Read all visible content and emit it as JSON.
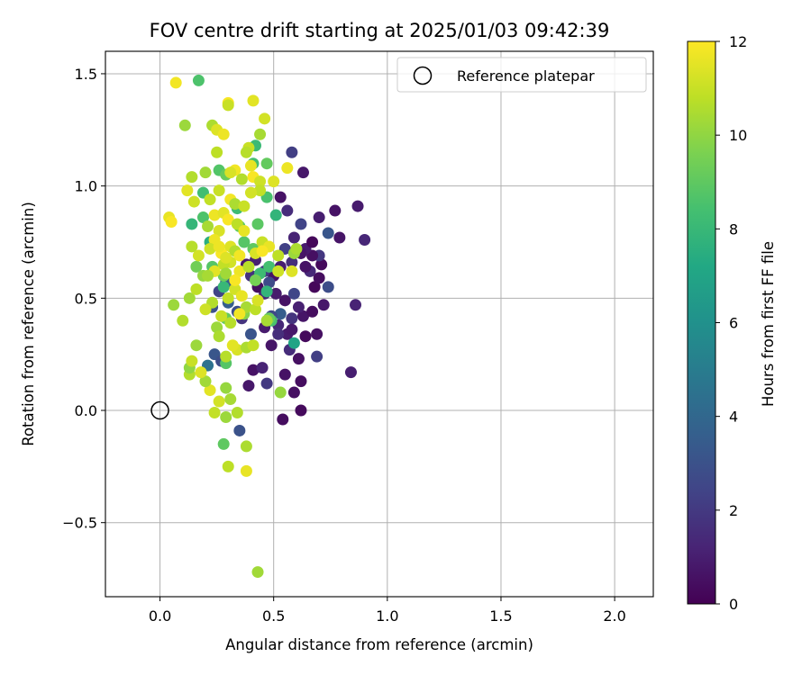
{
  "chart_data": {
    "type": "scatter",
    "title": "FOV centre drift starting at 2025/01/03 09:42:39",
    "xlabel": "Angular distance from reference (arcmin)",
    "ylabel": "Rotation from reference (arcmin)",
    "xlim": [
      -0.24,
      2.17
    ],
    "ylim": [
      -0.83,
      1.6
    ],
    "xticks": [
      0.0,
      0.5,
      1.0,
      1.5,
      2.0
    ],
    "xtick_labels": [
      "0.0",
      "0.5",
      "1.0",
      "1.5",
      "2.0"
    ],
    "yticks": [
      -0.5,
      0.0,
      0.5,
      1.0,
      1.5
    ],
    "ytick_labels": [
      "−0.5",
      "0.0",
      "0.5",
      "1.0",
      "1.5"
    ],
    "grid": true,
    "legend": {
      "placement": "top-right",
      "entries": [
        "Reference platepar"
      ]
    },
    "reference_point": {
      "label": "Reference platepar",
      "x": 0.0,
      "y": 0.0
    },
    "colorbar": {
      "label": "Hours from first FF file",
      "min": 0,
      "max": 12,
      "ticks": [
        0,
        2,
        4,
        6,
        8,
        10,
        12
      ],
      "tick_labels": [
        "0",
        "2",
        "4",
        "6",
        "8",
        "10",
        "12"
      ],
      "colormap": "viridis"
    },
    "points": [
      {
        "x": 0.54,
        "y": -0.04,
        "h": 0.4
      },
      {
        "x": 0.62,
        "y": 0.0,
        "h": 0.3
      },
      {
        "x": 0.59,
        "y": 0.08,
        "h": 0.5
      },
      {
        "x": 0.55,
        "y": 0.16,
        "h": 0.6
      },
      {
        "x": 0.62,
        "y": 0.13,
        "h": 0.4
      },
      {
        "x": 0.84,
        "y": 0.17,
        "h": 1.0
      },
      {
        "x": 0.69,
        "y": 0.24,
        "h": 2.2
      },
      {
        "x": 0.61,
        "y": 0.23,
        "h": 0.5
      },
      {
        "x": 0.57,
        "y": 0.27,
        "h": 1.5
      },
      {
        "x": 0.49,
        "y": 0.29,
        "h": 0.7
      },
      {
        "x": 0.41,
        "y": 0.18,
        "h": 0.6
      },
      {
        "x": 0.45,
        "y": 0.19,
        "h": 1.2
      },
      {
        "x": 0.47,
        "y": 0.12,
        "h": 2.0
      },
      {
        "x": 0.39,
        "y": 0.11,
        "h": 0.8
      },
      {
        "x": 0.35,
        "y": -0.09,
        "h": 3.0
      },
      {
        "x": 0.64,
        "y": 0.33,
        "h": 0.3
      },
      {
        "x": 0.69,
        "y": 0.34,
        "h": 0.5
      },
      {
        "x": 0.56,
        "y": 0.34,
        "h": 0.9
      },
      {
        "x": 0.52,
        "y": 0.38,
        "h": 1.3
      },
      {
        "x": 0.58,
        "y": 0.41,
        "h": 1.8
      },
      {
        "x": 0.63,
        "y": 0.42,
        "h": 0.7
      },
      {
        "x": 0.67,
        "y": 0.44,
        "h": 0.4
      },
      {
        "x": 0.61,
        "y": 0.46,
        "h": 1.1
      },
      {
        "x": 0.55,
        "y": 0.49,
        "h": 0.6
      },
      {
        "x": 0.59,
        "y": 0.52,
        "h": 2.5
      },
      {
        "x": 0.68,
        "y": 0.55,
        "h": 0.2
      },
      {
        "x": 0.74,
        "y": 0.55,
        "h": 2.8
      },
      {
        "x": 0.72,
        "y": 0.47,
        "h": 0.8
      },
      {
        "x": 0.7,
        "y": 0.59,
        "h": 0.4
      },
      {
        "x": 0.66,
        "y": 0.62,
        "h": 1.4
      },
      {
        "x": 0.64,
        "y": 0.64,
        "h": 0.6
      },
      {
        "x": 0.71,
        "y": 0.65,
        "h": 0.3
      },
      {
        "x": 0.7,
        "y": 0.69,
        "h": 1.9
      },
      {
        "x": 0.67,
        "y": 0.69,
        "h": 0.5
      },
      {
        "x": 0.64,
        "y": 0.72,
        "h": 0.9
      },
      {
        "x": 0.67,
        "y": 0.75,
        "h": 0.2
      },
      {
        "x": 0.62,
        "y": 0.7,
        "h": 0.7
      },
      {
        "x": 0.58,
        "y": 0.66,
        "h": 1.6
      },
      {
        "x": 0.55,
        "y": 0.72,
        "h": 2.3
      },
      {
        "x": 0.53,
        "y": 0.64,
        "h": 1.0
      },
      {
        "x": 0.5,
        "y": 0.6,
        "h": 0.6
      },
      {
        "x": 0.48,
        "y": 0.57,
        "h": 2.7
      },
      {
        "x": 0.51,
        "y": 0.52,
        "h": 0.9
      },
      {
        "x": 0.46,
        "y": 0.52,
        "h": 1.4
      },
      {
        "x": 0.43,
        "y": 0.55,
        "h": 0.4
      },
      {
        "x": 0.4,
        "y": 0.6,
        "h": 1.7
      },
      {
        "x": 0.38,
        "y": 0.65,
        "h": 0.8
      },
      {
        "x": 0.42,
        "y": 0.67,
        "h": 1.1
      },
      {
        "x": 0.46,
        "y": 0.62,
        "h": 2.1
      },
      {
        "x": 0.59,
        "y": 0.77,
        "h": 1.2
      },
      {
        "x": 0.62,
        "y": 0.83,
        "h": 2.4
      },
      {
        "x": 0.7,
        "y": 0.86,
        "h": 1.0
      },
      {
        "x": 0.77,
        "y": 0.89,
        "h": 0.6
      },
      {
        "x": 0.87,
        "y": 0.91,
        "h": 0.9
      },
      {
        "x": 0.9,
        "y": 0.76,
        "h": 1.3
      },
      {
        "x": 0.79,
        "y": 0.77,
        "h": 0.7
      },
      {
        "x": 0.74,
        "y": 0.79,
        "h": 3.2
      },
      {
        "x": 0.56,
        "y": 0.89,
        "h": 1.5
      },
      {
        "x": 0.53,
        "y": 0.95,
        "h": 0.6
      },
      {
        "x": 0.58,
        "y": 1.15,
        "h": 2.2
      },
      {
        "x": 0.63,
        "y": 1.06,
        "h": 0.8
      },
      {
        "x": 0.86,
        "y": 0.47,
        "h": 1.2
      },
      {
        "x": 0.53,
        "y": 0.43,
        "h": 3.5
      },
      {
        "x": 0.49,
        "y": 0.42,
        "h": 2.6
      },
      {
        "x": 0.46,
        "y": 0.37,
        "h": 0.9
      },
      {
        "x": 0.4,
        "y": 0.34,
        "h": 3.1
      },
      {
        "x": 0.36,
        "y": 0.41,
        "h": 1.8
      },
      {
        "x": 0.34,
        "y": 0.44,
        "h": 2.9
      },
      {
        "x": 0.3,
        "y": 0.48,
        "h": 3.6
      },
      {
        "x": 0.26,
        "y": 0.53,
        "h": 2.4
      },
      {
        "x": 0.23,
        "y": 0.46,
        "h": 3.0
      },
      {
        "x": 0.29,
        "y": 0.57,
        "h": 3.4
      },
      {
        "x": 0.24,
        "y": 0.25,
        "h": 3.2
      },
      {
        "x": 0.27,
        "y": 0.22,
        "h": 2.8
      },
      {
        "x": 0.21,
        "y": 0.2,
        "h": 4.5
      },
      {
        "x": 0.58,
        "y": 0.36,
        "h": 0.8
      },
      {
        "x": 0.52,
        "y": 0.34,
        "h": 1.6
      },
      {
        "x": 0.59,
        "y": 0.3,
        "h": 7.0
      },
      {
        "x": 0.49,
        "y": 0.4,
        "h": 8.5
      },
      {
        "x": 0.47,
        "y": 0.53,
        "h": 7.8
      },
      {
        "x": 0.44,
        "y": 0.61,
        "h": 8.2
      },
      {
        "x": 0.41,
        "y": 0.72,
        "h": 9.0
      },
      {
        "x": 0.37,
        "y": 0.75,
        "h": 8.8
      },
      {
        "x": 0.28,
        "y": 0.55,
        "h": 8.0
      },
      {
        "x": 0.22,
        "y": 0.75,
        "h": 7.5
      },
      {
        "x": 0.19,
        "y": 0.86,
        "h": 8.6
      },
      {
        "x": 0.14,
        "y": 0.83,
        "h": 7.9
      },
      {
        "x": 0.19,
        "y": 0.97,
        "h": 8.3
      },
      {
        "x": 0.26,
        "y": 1.07,
        "h": 8.7
      },
      {
        "x": 0.29,
        "y": 1.05,
        "h": 9.2
      },
      {
        "x": 0.41,
        "y": 1.1,
        "h": 8.4
      },
      {
        "x": 0.42,
        "y": 1.18,
        "h": 8.1
      },
      {
        "x": 0.47,
        "y": 1.1,
        "h": 9.1
      },
      {
        "x": 0.47,
        "y": 0.95,
        "h": 8.5
      },
      {
        "x": 0.51,
        "y": 0.87,
        "h": 7.8
      },
      {
        "x": 0.43,
        "y": 0.83,
        "h": 8.9
      },
      {
        "x": 0.34,
        "y": 0.9,
        "h": 8.2
      },
      {
        "x": 0.17,
        "y": 1.47,
        "h": 8.6
      },
      {
        "x": 0.35,
        "y": 0.82,
        "h": 9.0
      },
      {
        "x": 0.28,
        "y": 0.6,
        "h": 9.3
      },
      {
        "x": 0.23,
        "y": 0.64,
        "h": 8.8
      },
      {
        "x": 0.16,
        "y": 0.64,
        "h": 9.4
      },
      {
        "x": 0.48,
        "y": 0.41,
        "h": 9.2
      },
      {
        "x": 0.42,
        "y": 0.58,
        "h": 9.5
      },
      {
        "x": 0.37,
        "y": 0.43,
        "h": 9.8
      },
      {
        "x": 0.29,
        "y": 0.41,
        "h": 9.1
      },
      {
        "x": 0.28,
        "y": -0.15,
        "h": 9.0
      },
      {
        "x": 0.29,
        "y": 0.21,
        "h": 8.8
      },
      {
        "x": 0.48,
        "y": 0.64,
        "h": 8.4
      },
      {
        "x": 0.43,
        "y": -0.72,
        "h": 10.3
      },
      {
        "x": 0.3,
        "y": -0.25,
        "h": 10.8
      },
      {
        "x": 0.38,
        "y": -0.27,
        "h": 11.6
      },
      {
        "x": 0.38,
        "y": -0.16,
        "h": 10.5
      },
      {
        "x": 0.29,
        "y": -0.03,
        "h": 10.2
      },
      {
        "x": 0.34,
        "y": -0.01,
        "h": 10.6
      },
      {
        "x": 0.24,
        "y": -0.01,
        "h": 10.9
      },
      {
        "x": 0.26,
        "y": 0.04,
        "h": 11.2
      },
      {
        "x": 0.31,
        "y": 0.05,
        "h": 10.4
      },
      {
        "x": 0.29,
        "y": 0.1,
        "h": 10.1
      },
      {
        "x": 0.22,
        "y": 0.09,
        "h": 11.5
      },
      {
        "x": 0.2,
        "y": 0.13,
        "h": 10.3
      },
      {
        "x": 0.13,
        "y": 0.16,
        "h": 10.6
      },
      {
        "x": 0.13,
        "y": 0.19,
        "h": 10.0
      },
      {
        "x": 0.14,
        "y": 0.22,
        "h": 11.0
      },
      {
        "x": 0.18,
        "y": 0.17,
        "h": 11.4
      },
      {
        "x": 0.16,
        "y": 0.29,
        "h": 10.2
      },
      {
        "x": 0.29,
        "y": 0.24,
        "h": 10.7
      },
      {
        "x": 0.34,
        "y": 0.27,
        "h": 11.3
      },
      {
        "x": 0.38,
        "y": 0.28,
        "h": 10.5
      },
      {
        "x": 0.41,
        "y": 0.29,
        "h": 10.9
      },
      {
        "x": 0.53,
        "y": 0.08,
        "h": 10.1
      },
      {
        "x": 0.47,
        "y": 0.4,
        "h": 10.4
      },
      {
        "x": 0.06,
        "y": 0.47,
        "h": 10.2
      },
      {
        "x": 0.1,
        "y": 0.4,
        "h": 10.6
      },
      {
        "x": 0.13,
        "y": 0.5,
        "h": 10.3
      },
      {
        "x": 0.16,
        "y": 0.54,
        "h": 10.8
      },
      {
        "x": 0.19,
        "y": 0.6,
        "h": 10.1
      },
      {
        "x": 0.17,
        "y": 0.69,
        "h": 11.2
      },
      {
        "x": 0.14,
        "y": 0.73,
        "h": 10.7
      },
      {
        "x": 0.21,
        "y": 0.82,
        "h": 10.4
      },
      {
        "x": 0.24,
        "y": 0.87,
        "h": 11.7
      },
      {
        "x": 0.22,
        "y": 0.94,
        "h": 10.9
      },
      {
        "x": 0.26,
        "y": 0.98,
        "h": 11.0
      },
      {
        "x": 0.2,
        "y": 1.06,
        "h": 10.3
      },
      {
        "x": 0.25,
        "y": 1.15,
        "h": 10.8
      },
      {
        "x": 0.23,
        "y": 1.27,
        "h": 10.5
      },
      {
        "x": 0.11,
        "y": 1.27,
        "h": 10.2
      },
      {
        "x": 0.07,
        "y": 1.46,
        "h": 11.8
      },
      {
        "x": 0.14,
        "y": 1.04,
        "h": 10.6
      },
      {
        "x": 0.12,
        "y": 0.98,
        "h": 11.5
      },
      {
        "x": 0.15,
        "y": 0.93,
        "h": 11.1
      },
      {
        "x": 0.04,
        "y": 0.86,
        "h": 11.6
      },
      {
        "x": 0.05,
        "y": 0.84,
        "h": 11.9
      },
      {
        "x": 0.25,
        "y": 1.25,
        "h": 11.4
      },
      {
        "x": 0.28,
        "y": 1.23,
        "h": 11.7
      },
      {
        "x": 0.3,
        "y": 1.37,
        "h": 11.9
      },
      {
        "x": 0.3,
        "y": 1.36,
        "h": 11.0
      },
      {
        "x": 0.41,
        "y": 1.38,
        "h": 11.5
      },
      {
        "x": 0.46,
        "y": 1.3,
        "h": 11.2
      },
      {
        "x": 0.44,
        "y": 1.23,
        "h": 10.4
      },
      {
        "x": 0.39,
        "y": 1.17,
        "h": 11.0
      },
      {
        "x": 0.38,
        "y": 1.15,
        "h": 10.7
      },
      {
        "x": 0.33,
        "y": 1.07,
        "h": 11.8
      },
      {
        "x": 0.31,
        "y": 1.06,
        "h": 11.3
      },
      {
        "x": 0.36,
        "y": 1.03,
        "h": 10.6
      },
      {
        "x": 0.4,
        "y": 1.09,
        "h": 11.6
      },
      {
        "x": 0.41,
        "y": 1.04,
        "h": 11.9
      },
      {
        "x": 0.44,
        "y": 1.02,
        "h": 11.1
      },
      {
        "x": 0.44,
        "y": 0.98,
        "h": 10.9
      },
      {
        "x": 0.5,
        "y": 1.02,
        "h": 11.4
      },
      {
        "x": 0.56,
        "y": 1.08,
        "h": 11.7
      },
      {
        "x": 0.4,
        "y": 0.97,
        "h": 11.2
      },
      {
        "x": 0.31,
        "y": 0.94,
        "h": 11.8
      },
      {
        "x": 0.33,
        "y": 0.92,
        "h": 10.5
      },
      {
        "x": 0.37,
        "y": 0.91,
        "h": 11.0
      },
      {
        "x": 0.28,
        "y": 0.88,
        "h": 11.5
      },
      {
        "x": 0.3,
        "y": 0.85,
        "h": 11.9
      },
      {
        "x": 0.34,
        "y": 0.83,
        "h": 10.8
      },
      {
        "x": 0.37,
        "y": 0.8,
        "h": 11.6
      },
      {
        "x": 0.26,
        "y": 0.8,
        "h": 11.3
      },
      {
        "x": 0.24,
        "y": 0.76,
        "h": 11.7
      },
      {
        "x": 0.22,
        "y": 0.72,
        "h": 11.1
      },
      {
        "x": 0.27,
        "y": 0.7,
        "h": 11.9
      },
      {
        "x": 0.31,
        "y": 0.73,
        "h": 11.4
      },
      {
        "x": 0.33,
        "y": 0.71,
        "h": 10.6
      },
      {
        "x": 0.35,
        "y": 0.69,
        "h": 11.8
      },
      {
        "x": 0.31,
        "y": 0.66,
        "h": 11.2
      },
      {
        "x": 0.28,
        "y": 0.65,
        "h": 10.9
      },
      {
        "x": 0.24,
        "y": 0.62,
        "h": 11.5
      },
      {
        "x": 0.21,
        "y": 0.6,
        "h": 10.4
      },
      {
        "x": 0.35,
        "y": 0.62,
        "h": 11.7
      },
      {
        "x": 0.39,
        "y": 0.64,
        "h": 10.7
      },
      {
        "x": 0.42,
        "y": 0.7,
        "h": 11.3
      },
      {
        "x": 0.45,
        "y": 0.75,
        "h": 11.0
      },
      {
        "x": 0.48,
        "y": 0.73,
        "h": 11.6
      },
      {
        "x": 0.52,
        "y": 0.62,
        "h": 11.1
      },
      {
        "x": 0.52,
        "y": 0.69,
        "h": 10.8
      },
      {
        "x": 0.59,
        "y": 0.7,
        "h": 10.2
      },
      {
        "x": 0.58,
        "y": 0.62,
        "h": 11.4
      },
      {
        "x": 0.6,
        "y": 0.72,
        "h": 10.5
      },
      {
        "x": 0.45,
        "y": 0.71,
        "h": 11.9
      },
      {
        "x": 0.29,
        "y": 0.61,
        "h": 10.3
      },
      {
        "x": 0.3,
        "y": 0.5,
        "h": 10.9
      },
      {
        "x": 0.33,
        "y": 0.54,
        "h": 11.2
      },
      {
        "x": 0.36,
        "y": 0.51,
        "h": 11.6
      },
      {
        "x": 0.38,
        "y": 0.46,
        "h": 10.4
      },
      {
        "x": 0.35,
        "y": 0.43,
        "h": 11.8
      },
      {
        "x": 0.31,
        "y": 0.39,
        "h": 10.7
      },
      {
        "x": 0.27,
        "y": 0.42,
        "h": 11.0
      },
      {
        "x": 0.25,
        "y": 0.37,
        "h": 10.2
      },
      {
        "x": 0.26,
        "y": 0.33,
        "h": 10.5
      },
      {
        "x": 0.42,
        "y": 0.45,
        "h": 10.8
      },
      {
        "x": 0.43,
        "y": 0.49,
        "h": 11.3
      },
      {
        "x": 0.23,
        "y": 0.48,
        "h": 10.6
      },
      {
        "x": 0.2,
        "y": 0.45,
        "h": 11.1
      },
      {
        "x": 0.32,
        "y": 0.29,
        "h": 11.5
      },
      {
        "x": 0.33,
        "y": 0.58,
        "h": 11.9
      },
      {
        "x": 0.29,
        "y": 0.68,
        "h": 11.4
      },
      {
        "x": 0.26,
        "y": 0.73,
        "h": 11.7
      }
    ]
  }
}
